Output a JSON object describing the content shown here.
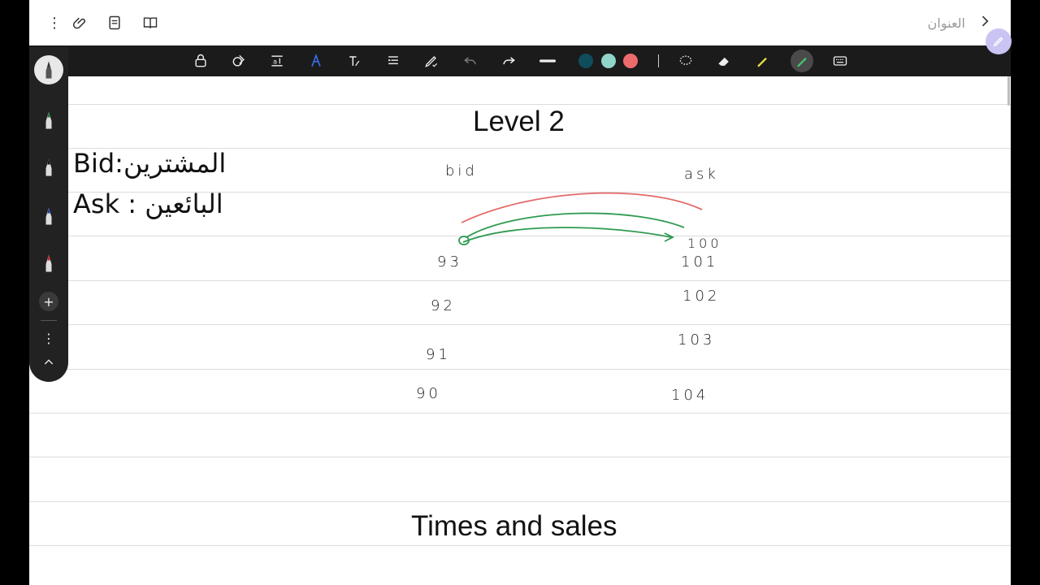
{
  "header": {
    "title": "العنوان",
    "icons": [
      "more-vert-icon",
      "attachment-icon",
      "page-icon",
      "book-icon",
      "chevron-right-icon"
    ]
  },
  "toolbar": {
    "tools": [
      "lock-icon",
      "shapes-icon",
      "text-box-icon",
      "pen-icon",
      "text-style-icon",
      "align-icon",
      "pen-edit-icon",
      "undo-icon",
      "redo-icon",
      "stroke-width-icon"
    ],
    "colors": [
      "#0f4c5c",
      "#8fd5c9",
      "#ee6b6b"
    ],
    "tools_right": [
      "lasso-icon",
      "eraser-icon",
      "highlighter-icon",
      "marker-icon",
      "keyboard-icon"
    ]
  },
  "note": {
    "title": "Level 2",
    "bid_label": "Bid:المشترين",
    "ask_label": "Ask : البائعين",
    "hand_bid": "bid",
    "hand_ask": "ask",
    "bid_prices": [
      "93",
      "92",
      "91",
      "90"
    ],
    "ask_prices": [
      "100",
      "101",
      "102",
      "103",
      "104"
    ],
    "section2_title": "Times and sales"
  },
  "pen_rail": {
    "pens": [
      {
        "name": "pen-1",
        "tip": "#333333"
      },
      {
        "name": "pen-2",
        "tip": "#1f7a3a"
      },
      {
        "name": "pen-3",
        "tip": "#111111"
      },
      {
        "name": "pen-4",
        "tip": "#1a3fa0"
      },
      {
        "name": "pen-5",
        "tip": "#c0262c"
      }
    ]
  }
}
